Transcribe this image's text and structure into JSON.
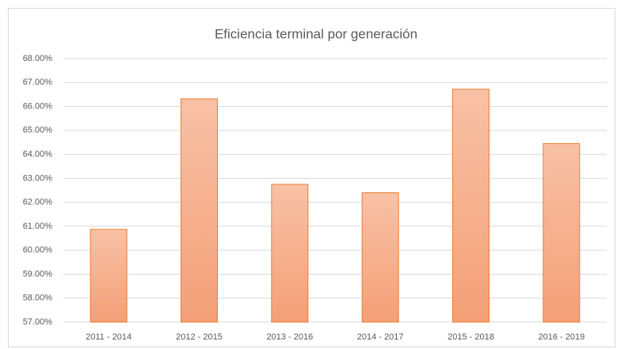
{
  "chart_data": {
    "type": "bar",
    "title": "Eficiencia terminal por generación",
    "categories": [
      "2011 - 2014",
      "2012 - 2015",
      "2013 - 2016",
      "2014 - 2017",
      "2015 - 2018",
      "2016 - 2019"
    ],
    "values": [
      60.87,
      66.32,
      62.75,
      62.4,
      66.72,
      64.45
    ],
    "color": "#ed7d31",
    "ylim": [
      57,
      68
    ],
    "yticks": [
      {
        "value": 57,
        "label": "57.00%"
      },
      {
        "value": 58,
        "label": "58.00%"
      },
      {
        "value": 59,
        "label": "59.00%"
      },
      {
        "value": 60,
        "label": "60.00%"
      },
      {
        "value": 61,
        "label": "61.00%"
      },
      {
        "value": 62,
        "label": "62.00%"
      },
      {
        "value": 63,
        "label": "63.00%"
      },
      {
        "value": 64,
        "label": "64.00%"
      },
      {
        "value": 65,
        "label": "65.00%"
      },
      {
        "value": 66,
        "label": "66.00%"
      },
      {
        "value": 67,
        "label": "67.00%"
      },
      {
        "value": 68,
        "label": "68.00%"
      }
    ],
    "grid": true
  }
}
